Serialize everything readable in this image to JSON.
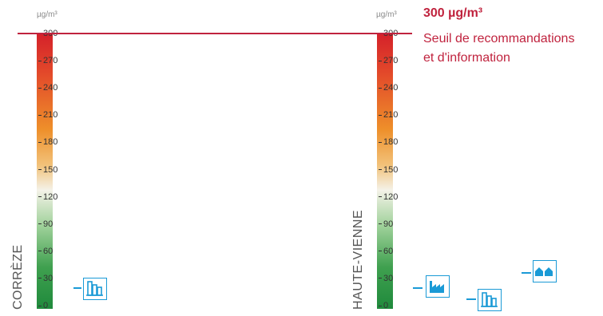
{
  "threshold": {
    "value_label": "300 µg/m³",
    "description_line1": "Seuil de recommandations",
    "description_line2": "et d'information"
  },
  "chart_data": [
    {
      "type": "scale",
      "region": "CORRÈZE",
      "unit": "µg/m³",
      "ylim": [
        0,
        300
      ],
      "ticks": [
        "0",
        "30",
        "60",
        "90",
        "120",
        "150",
        "180",
        "210",
        "240",
        "270",
        "300"
      ],
      "threshold": 300,
      "markers": [
        {
          "icon": "urban-buildings-icon",
          "value": 20
        }
      ]
    },
    {
      "type": "scale",
      "region": "HAUTE-VIENNE",
      "unit": "µg/m³",
      "ylim": [
        0,
        300
      ],
      "ticks": [
        "0",
        "30",
        "60",
        "90",
        "120",
        "150",
        "180",
        "210",
        "240",
        "270",
        "300"
      ],
      "threshold": 300,
      "markers": [
        {
          "icon": "industrial-factory-icon",
          "value": 20
        },
        {
          "icon": "urban-buildings-icon",
          "value": 8
        },
        {
          "icon": "rural-houses-icon",
          "value": 37
        }
      ]
    }
  ],
  "colors": {
    "threshold": "#c0233e",
    "marker": "#1a9ad6"
  }
}
